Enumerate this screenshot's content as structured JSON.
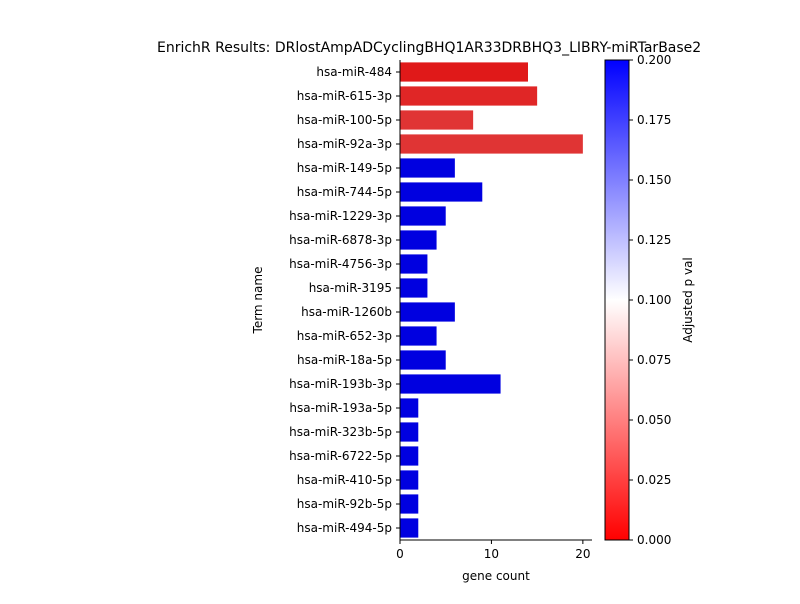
{
  "chart_data": {
    "type": "bar",
    "orientation": "horizontal",
    "title": "EnrichR Results: DRlostAmpADCyclingBHQ1AR33DRBHQ3_LIBRY-miRTarBase2",
    "xlabel": "gene count",
    "ylabel": "Term name",
    "xlim": [
      0,
      21
    ],
    "xticks": [
      0,
      10,
      20
    ],
    "categories": [
      "hsa-miR-484",
      "hsa-miR-615-3p",
      "hsa-miR-100-5p",
      "hsa-miR-92a-3p",
      "hsa-miR-149-5p",
      "hsa-miR-744-5p",
      "hsa-miR-1229-3p",
      "hsa-miR-6878-3p",
      "hsa-miR-4756-3p",
      "hsa-miR-3195",
      "hsa-miR-1260b",
      "hsa-miR-652-3p",
      "hsa-miR-18a-5p",
      "hsa-miR-193b-3p",
      "hsa-miR-193a-5p",
      "hsa-miR-323b-5p",
      "hsa-miR-6722-5p",
      "hsa-miR-410-5p",
      "hsa-miR-92b-5p",
      "hsa-miR-494-5p"
    ],
    "values": [
      14,
      15,
      8,
      20,
      6,
      9,
      5,
      4,
      3,
      3,
      6,
      4,
      5,
      11,
      2,
      2,
      2,
      2,
      2,
      2
    ],
    "adjusted_p": [
      0.011,
      0.017,
      0.023,
      0.023,
      0.2,
      0.2,
      0.2,
      0.2,
      0.2,
      0.2,
      0.2,
      0.2,
      0.2,
      0.2,
      0.2,
      0.2,
      0.2,
      0.2,
      0.2,
      0.2
    ],
    "colorbar": {
      "label": "Adjusted p val",
      "range": [
        0,
        0.2
      ],
      "ticks": [
        "0.000",
        "0.025",
        "0.050",
        "0.075",
        "0.100",
        "0.125",
        "0.150",
        "0.175",
        "0.200"
      ],
      "colors": [
        "#ff0000",
        "#ffffff",
        "#0000ff"
      ]
    },
    "grid": false
  }
}
